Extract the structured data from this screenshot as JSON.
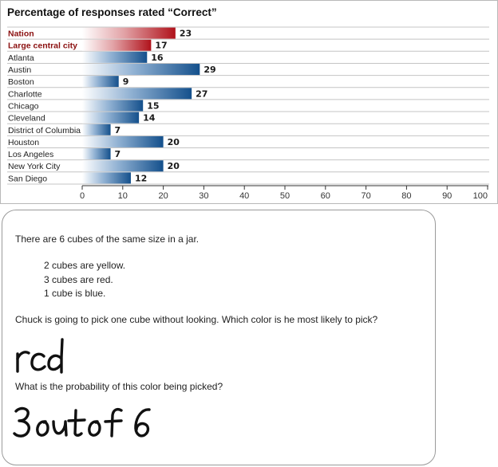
{
  "chart_data": {
    "type": "bar",
    "orientation": "horizontal",
    "title": "Percentage of responses rated “Correct”",
    "categories": [
      "Nation",
      "Large central city",
      "Atlanta",
      "Austin",
      "Boston",
      "Charlotte",
      "Chicago",
      "Cleveland",
      "District of Columbia",
      "Houston",
      "Los Angeles",
      "New York City",
      "San Diego"
    ],
    "values": [
      23,
      17,
      16,
      29,
      9,
      27,
      15,
      14,
      7,
      20,
      7,
      20,
      12
    ],
    "highlighted": [
      "Nation",
      "Large central city"
    ],
    "xlim": [
      0,
      100
    ],
    "xticks": [
      0,
      10,
      20,
      30,
      40,
      50,
      60,
      70,
      80,
      90,
      100
    ],
    "xlabel": "",
    "ylabel": "",
    "grid": "horizontal row separators",
    "colors": {
      "highlight": "#b0121b",
      "standard": "#14508c",
      "highlight_label": "#8b1010"
    }
  },
  "item": {
    "intro": "There are 6 cubes of the same size in a jar.",
    "cubes": [
      "2 cubes are yellow.",
      "3 cubes are red.",
      "1 cube is blue."
    ],
    "question1": "Chuck is going to pick one cube without looking. Which color is he most likely to pick?",
    "answer1": "red",
    "question2": "What is the probability of this color being picked?",
    "answer2": "3 out of 6"
  }
}
